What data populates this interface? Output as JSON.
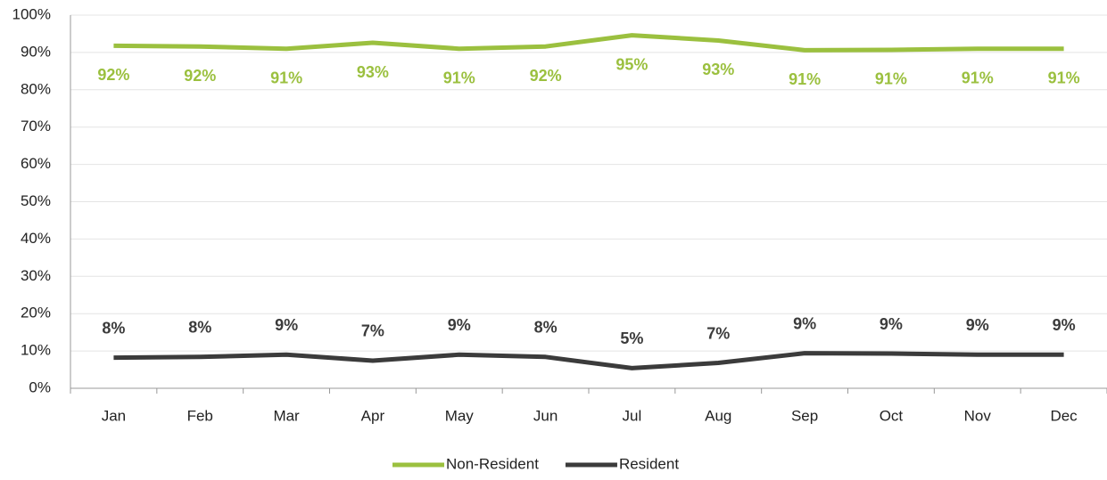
{
  "chart_data": {
    "type": "line",
    "categories": [
      "Jan",
      "Feb",
      "Mar",
      "Apr",
      "May",
      "Jun",
      "Jul",
      "Aug",
      "Sep",
      "Oct",
      "Nov",
      "Dec"
    ],
    "series": [
      {
        "name": "Non-Resident",
        "color": "#9bc03f",
        "values": [
          91.8,
          91.6,
          91.0,
          92.6,
          91.0,
          91.6,
          94.6,
          93.2,
          90.6,
          90.7,
          91.0,
          91.0
        ],
        "value_labels": [
          "92%",
          "92%",
          "91%",
          "93%",
          "91%",
          "92%",
          "95%",
          "93%",
          "91%",
          "91%",
          "91%",
          "91%"
        ]
      },
      {
        "name": "Resident",
        "color": "#3b3b3b",
        "values": [
          8.2,
          8.4,
          9.0,
          7.4,
          9.0,
          8.4,
          5.4,
          6.8,
          9.4,
          9.3,
          9.0,
          9.0
        ],
        "value_labels": [
          "8%",
          "8%",
          "9%",
          "7%",
          "9%",
          "8%",
          "5%",
          "7%",
          "9%",
          "9%",
          "9%",
          "9%"
        ]
      }
    ],
    "ylim": [
      0,
      100
    ],
    "yticks": [
      {
        "value": 0,
        "label": "0%"
      },
      {
        "value": 10,
        "label": "10%"
      },
      {
        "value": 20,
        "label": "20%"
      },
      {
        "value": 30,
        "label": "30%"
      },
      {
        "value": 40,
        "label": "40%"
      },
      {
        "value": 50,
        "label": "50%"
      },
      {
        "value": 60,
        "label": "60%"
      },
      {
        "value": 70,
        "label": "70%"
      },
      {
        "value": 80,
        "label": "80%"
      },
      {
        "value": 90,
        "label": "90%"
      },
      {
        "value": 100,
        "label": "100%"
      }
    ],
    "grid": true,
    "legend": "bottom"
  }
}
